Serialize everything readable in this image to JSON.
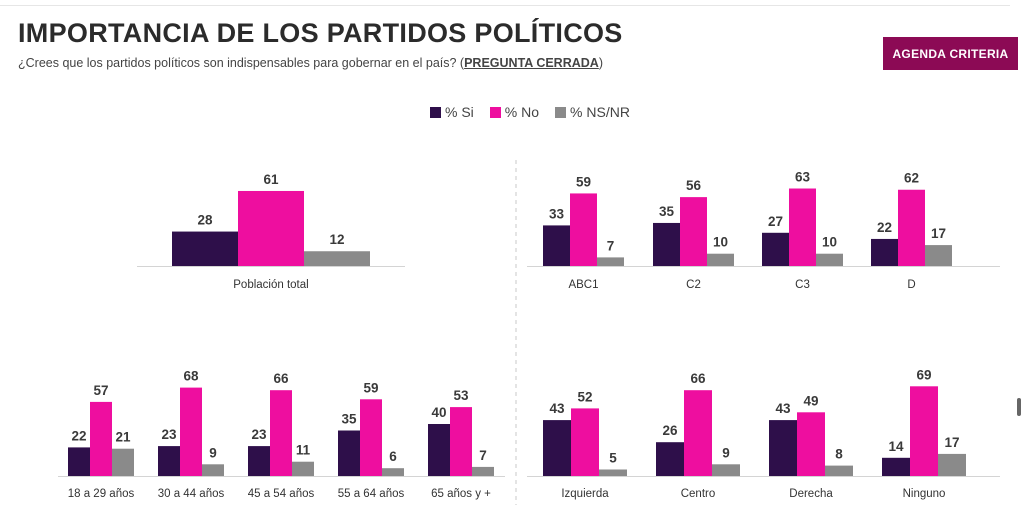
{
  "header": {
    "title": "IMPORTANCIA DE LOS PARTIDOS POLÍTICOS",
    "subtitle_main": "¿Crees que los partidos políticos son indispensables para gobernar en el país? (",
    "subtitle_link": "PREGUNTA CERRADA",
    "subtitle_end": ")",
    "badge": "AGENDA CRITERIA"
  },
  "legend": [
    {
      "label": "% Si",
      "color": "#2e0f4a"
    },
    {
      "label": "% No",
      "color": "#ee0e9f"
    },
    {
      "label": "% NS/NR",
      "color": "#8a8a8a"
    }
  ],
  "chart_data": [
    {
      "type": "bar",
      "categories": [
        "Población total"
      ],
      "series": [
        {
          "name": "% Si",
          "values": [
            28
          ]
        },
        {
          "name": "% No",
          "values": [
            61
          ]
        },
        {
          "name": "% NS/NR",
          "values": [
            12
          ]
        }
      ]
    },
    {
      "type": "bar",
      "categories": [
        "ABC1",
        "C2",
        "C3",
        "D"
      ],
      "series": [
        {
          "name": "% Si",
          "values": [
            33,
            35,
            27,
            22
          ]
        },
        {
          "name": "% No",
          "values": [
            59,
            56,
            63,
            62
          ]
        },
        {
          "name": "% NS/NR",
          "values": [
            7,
            10,
            10,
            17
          ]
        }
      ]
    },
    {
      "type": "bar",
      "categories": [
        "18 a 29 años",
        "30 a 44 años",
        "45 a 54 años",
        "55 a 64 años",
        "65 años y +"
      ],
      "series": [
        {
          "name": "% Si",
          "values": [
            22,
            23,
            23,
            35,
            40
          ]
        },
        {
          "name": "% No",
          "values": [
            57,
            68,
            66,
            59,
            53
          ]
        },
        {
          "name": "% NS/NR",
          "values": [
            21,
            9,
            11,
            6,
            7
          ]
        }
      ]
    },
    {
      "type": "bar",
      "categories": [
        "Izquierda",
        "Centro",
        "Derecha",
        "Ninguno"
      ],
      "series": [
        {
          "name": "% Si",
          "values": [
            43,
            26,
            43,
            14
          ]
        },
        {
          "name": "% No",
          "values": [
            52,
            66,
            49,
            69
          ]
        },
        {
          "name": "% NS/NR",
          "values": [
            5,
            9,
            8,
            17
          ]
        }
      ]
    }
  ]
}
